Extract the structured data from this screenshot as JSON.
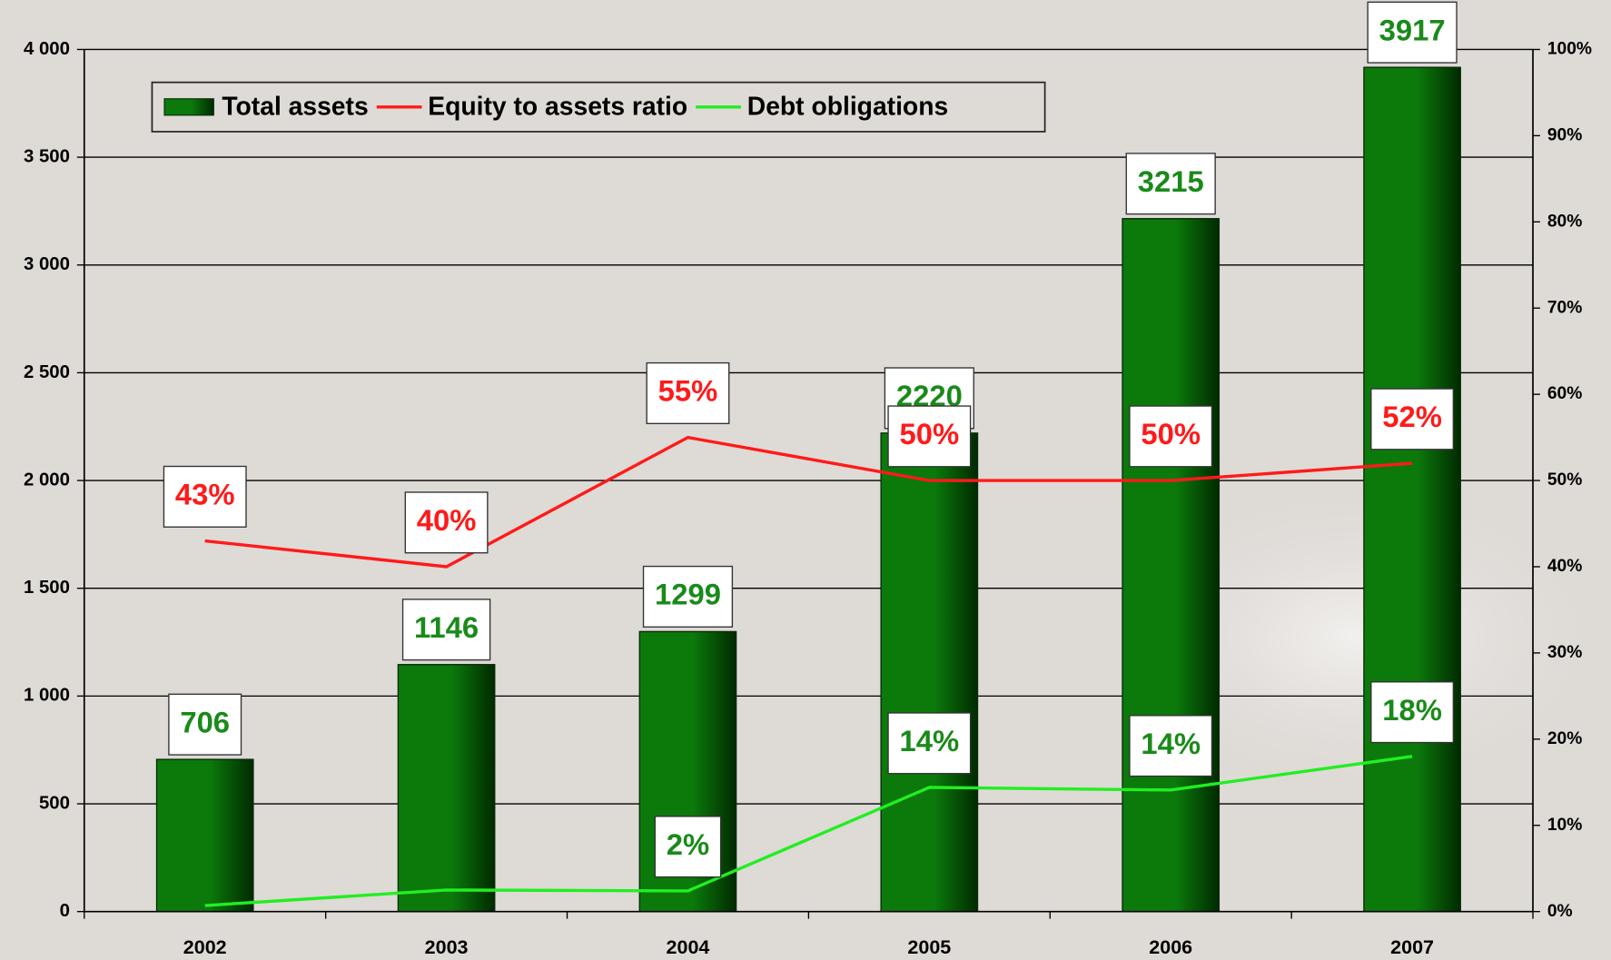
{
  "chart_data": {
    "type": "bar_line",
    "categories": [
      "2002",
      "2003",
      "2004",
      "2005",
      "2006",
      "2007"
    ],
    "series": [
      {
        "name": "Total assets",
        "type": "bar",
        "color": "#0b7a0b",
        "values": [
          706,
          1146,
          1299,
          2220,
          3215,
          3917
        ],
        "label_color": "#1a8a1a"
      },
      {
        "name": "Equity to assets ratio",
        "type": "line",
        "axis": "y2",
        "color": "#ff1a1a",
        "values": [
          43,
          40,
          55,
          50,
          50,
          52
        ],
        "value_labels": [
          "43%",
          "40%",
          "55%",
          "50%",
          "50%",
          "52%"
        ],
        "label_color": "#ff1a1a"
      },
      {
        "name": "Debt obligations",
        "type": "line",
        "axis": "y2",
        "color": "#22ee22",
        "values": [
          0.7,
          2.5,
          2.4,
          14.4,
          14.1,
          18
        ],
        "value_labels": [
          null,
          null,
          "2%",
          "14%",
          "14%",
          "18%"
        ],
        "label_color": "#1a8a1a"
      }
    ],
    "ylim": [
      0,
      4000
    ],
    "yticks": [
      0,
      500,
      {
        "value": 1000,
        "label": "1 000"
      },
      {
        "value": 1500,
        "label": "1 500"
      },
      {
        "value": 2000,
        "label": "2 000"
      },
      {
        "value": 2500,
        "label": "2 500"
      },
      {
        "value": 3000,
        "label": "3 000"
      },
      {
        "value": 3500,
        "label": "3 500"
      },
      {
        "value": 4000,
        "label": "4 000"
      }
    ],
    "y2lim": [
      0,
      100
    ],
    "y2ticks": [
      {
        "value": 0,
        "label": "0%"
      },
      {
        "value": 10,
        "label": "10%"
      },
      {
        "value": 20,
        "label": "20%"
      },
      {
        "value": 30,
        "label": "30%"
      },
      {
        "value": 40,
        "label": "40%"
      },
      {
        "value": 50,
        "label": "50%"
      },
      {
        "value": 60,
        "label": "60%"
      },
      {
        "value": 70,
        "label": "70%"
      },
      {
        "value": 80,
        "label": "80%"
      },
      {
        "value": 90,
        "label": "90%"
      },
      {
        "value": 100,
        "label": "100%"
      }
    ],
    "grid": true
  }
}
